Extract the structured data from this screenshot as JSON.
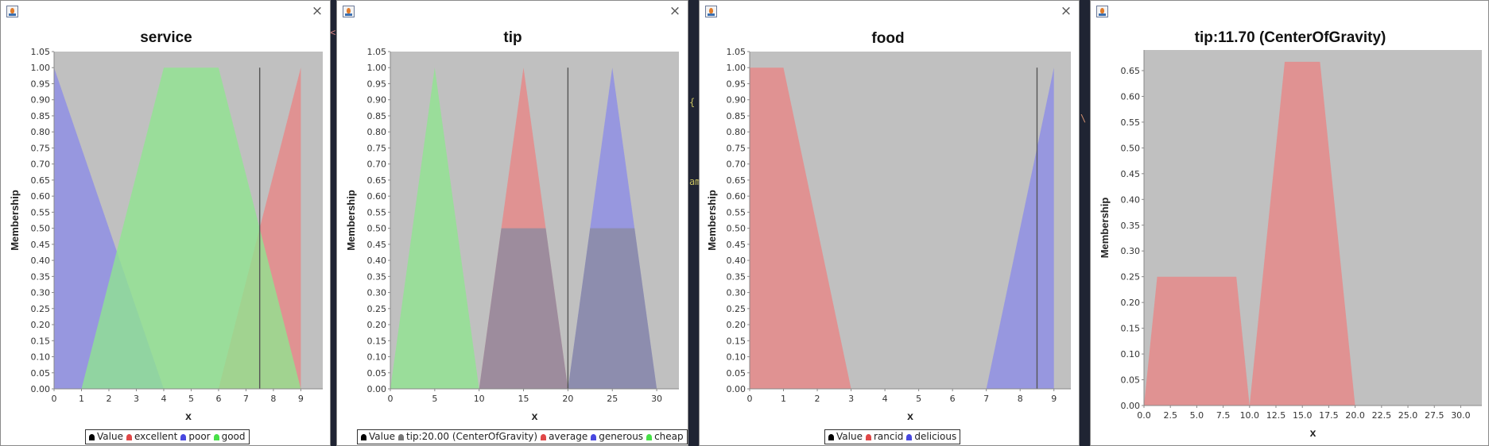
{
  "desktop": {
    "bg_glyphs": [
      {
        "text": "<s"
      },
      {
        "text": "{"
      },
      {
        "text": "\\"
      },
      {
        "text": "am"
      }
    ]
  },
  "windows": [
    {
      "id": "service",
      "close_label": "×",
      "legend_key": "legend_service",
      "chart": 0
    },
    {
      "id": "tip",
      "close_label": "×",
      "legend_key": "legend_tip",
      "chart": 1
    },
    {
      "id": "food",
      "close_label": "×",
      "legend_key": "legend_food",
      "chart": 2
    },
    {
      "id": "tip-output",
      "close_label": "",
      "legend_key": null,
      "chart": 3
    }
  ],
  "colors": {
    "plot_bg": "#c0c0c0",
    "red": "#e98585",
    "blue": "#8c8ce8",
    "green": "#8fe58f",
    "value_line": "#555555",
    "grid": "#ffffff"
  },
  "chart_data": [
    {
      "type": "area",
      "title": "service",
      "xlabel": "x",
      "ylabel": "Membership",
      "xlim": [
        0,
        9.8
      ],
      "ylim": [
        0,
        1.05
      ],
      "xticks": [
        0,
        1,
        2,
        3,
        4,
        5,
        6,
        7,
        8,
        9
      ],
      "yticks": [
        0,
        0.05,
        0.1,
        0.15,
        0.2,
        0.25,
        0.3,
        0.35,
        0.4,
        0.45,
        0.5,
        0.55,
        0.6,
        0.65,
        0.7,
        0.75,
        0.8,
        0.85,
        0.9,
        0.95,
        1.0,
        1.05
      ],
      "ytick_decimals": 2,
      "series": [
        {
          "name": "excellent",
          "color": "#e98585",
          "points": [
            [
              6,
              0
            ],
            [
              9,
              1
            ],
            [
              9,
              0
            ]
          ]
        },
        {
          "name": "poor",
          "color": "#8c8ce8",
          "points": [
            [
              0,
              0
            ],
            [
              0,
              1
            ],
            [
              4,
              0
            ]
          ]
        },
        {
          "name": "good",
          "color": "#8fe58f",
          "points": [
            [
              1,
              0
            ],
            [
              4,
              1
            ],
            [
              6,
              1
            ],
            [
              9,
              0
            ]
          ]
        }
      ],
      "value_line": {
        "x": 7.5,
        "y": 1.0
      },
      "legend": [
        {
          "label": "Value",
          "color": "#000000"
        },
        {
          "label": "excellent",
          "color": "#e04848"
        },
        {
          "label": "poor",
          "color": "#4848e0"
        },
        {
          "label": "good",
          "color": "#48e048"
        }
      ]
    },
    {
      "type": "area",
      "title": "tip",
      "xlabel": "x",
      "ylabel": "Membership",
      "xlim": [
        0,
        32.5
      ],
      "ylim": [
        0,
        1.05
      ],
      "xticks": [
        0,
        5,
        10,
        15,
        20,
        25,
        30
      ],
      "yticks": [
        0,
        0.05,
        0.1,
        0.15,
        0.2,
        0.25,
        0.3,
        0.35,
        0.4,
        0.45,
        0.5,
        0.55,
        0.6,
        0.65,
        0.7,
        0.75,
        0.8,
        0.85,
        0.9,
        0.95,
        1.0,
        1.05
      ],
      "ytick_decimals": 2,
      "series": [
        {
          "name": "average",
          "color": "#e98585",
          "points": [
            [
              10,
              0
            ],
            [
              15,
              1
            ],
            [
              20,
              0
            ]
          ]
        },
        {
          "name": "generous",
          "color": "#8c8ce8",
          "points": [
            [
              20,
              0
            ],
            [
              25,
              1
            ],
            [
              30,
              0
            ]
          ]
        },
        {
          "name": "cheap",
          "color": "#8fe58f",
          "points": [
            [
              0,
              0
            ],
            [
              5,
              1
            ],
            [
              10,
              0
            ]
          ]
        },
        {
          "name": "tip:20.00 (CenterOfGravity)",
          "color": "#8a8aa0",
          "points": [
            [
              10,
              0
            ],
            [
              12.5,
              0.5
            ],
            [
              17.5,
              0.5
            ],
            [
              20,
              0
            ],
            [
              22.5,
              0.5
            ],
            [
              27.5,
              0.5
            ],
            [
              30,
              0
            ]
          ]
        }
      ],
      "value_line": {
        "x": 20,
        "y": 1.0
      },
      "legend": [
        {
          "label": "Value",
          "color": "#000000"
        },
        {
          "label": "tip:20.00 (CenterOfGravity)",
          "color": "#777777"
        },
        {
          "label": "average",
          "color": "#e04848"
        },
        {
          "label": "generous",
          "color": "#4848e0"
        },
        {
          "label": "cheap",
          "color": "#48e048"
        }
      ]
    },
    {
      "type": "area",
      "title": "food",
      "xlabel": "x",
      "ylabel": "Membership",
      "xlim": [
        0,
        9.5
      ],
      "ylim": [
        0,
        1.05
      ],
      "xticks": [
        0,
        1,
        2,
        3,
        4,
        5,
        6,
        7,
        8,
        9
      ],
      "yticks": [
        0,
        0.05,
        0.1,
        0.15,
        0.2,
        0.25,
        0.3,
        0.35,
        0.4,
        0.45,
        0.5,
        0.55,
        0.6,
        0.65,
        0.7,
        0.75,
        0.8,
        0.85,
        0.9,
        0.95,
        1.0,
        1.05
      ],
      "ytick_decimals": 2,
      "series": [
        {
          "name": "rancid",
          "color": "#e98585",
          "points": [
            [
              0,
              0
            ],
            [
              0,
              1
            ],
            [
              1,
              1
            ],
            [
              3,
              0
            ]
          ]
        },
        {
          "name": "delicious",
          "color": "#8c8ce8",
          "points": [
            [
              7,
              0
            ],
            [
              9,
              1
            ],
            [
              9,
              0
            ]
          ]
        }
      ],
      "value_line": {
        "x": 8.5,
        "y": 1.0
      },
      "legend": [
        {
          "label": "Value",
          "color": "#000000"
        },
        {
          "label": "rancid",
          "color": "#e04848"
        },
        {
          "label": "delicious",
          "color": "#4848e0"
        }
      ]
    },
    {
      "type": "area",
      "title": "tip:11.70 (CenterOfGravity)",
      "xlabel": "x",
      "ylabel": "Membership",
      "xlim": [
        0,
        32
      ],
      "ylim": [
        0,
        0.69
      ],
      "xticks": [
        0,
        2.5,
        5,
        7.5,
        10,
        12.5,
        15,
        17.5,
        20,
        22.5,
        25,
        27.5,
        30
      ],
      "yticks": [
        0,
        0.05,
        0.1,
        0.15,
        0.2,
        0.25,
        0.3,
        0.35,
        0.4,
        0.45,
        0.5,
        0.55,
        0.6,
        0.65
      ],
      "ytick_decimals": 2,
      "xtick_decimals": 1,
      "series": [
        {
          "name": "tip",
          "color": "#e98585",
          "points": [
            [
              0,
              0
            ],
            [
              1.25,
              0.25
            ],
            [
              8.75,
              0.25
            ],
            [
              10,
              0
            ],
            [
              13.33,
              0.667
            ],
            [
              16.67,
              0.667
            ],
            [
              20,
              0
            ]
          ]
        }
      ],
      "value_line": null,
      "legend": []
    }
  ]
}
